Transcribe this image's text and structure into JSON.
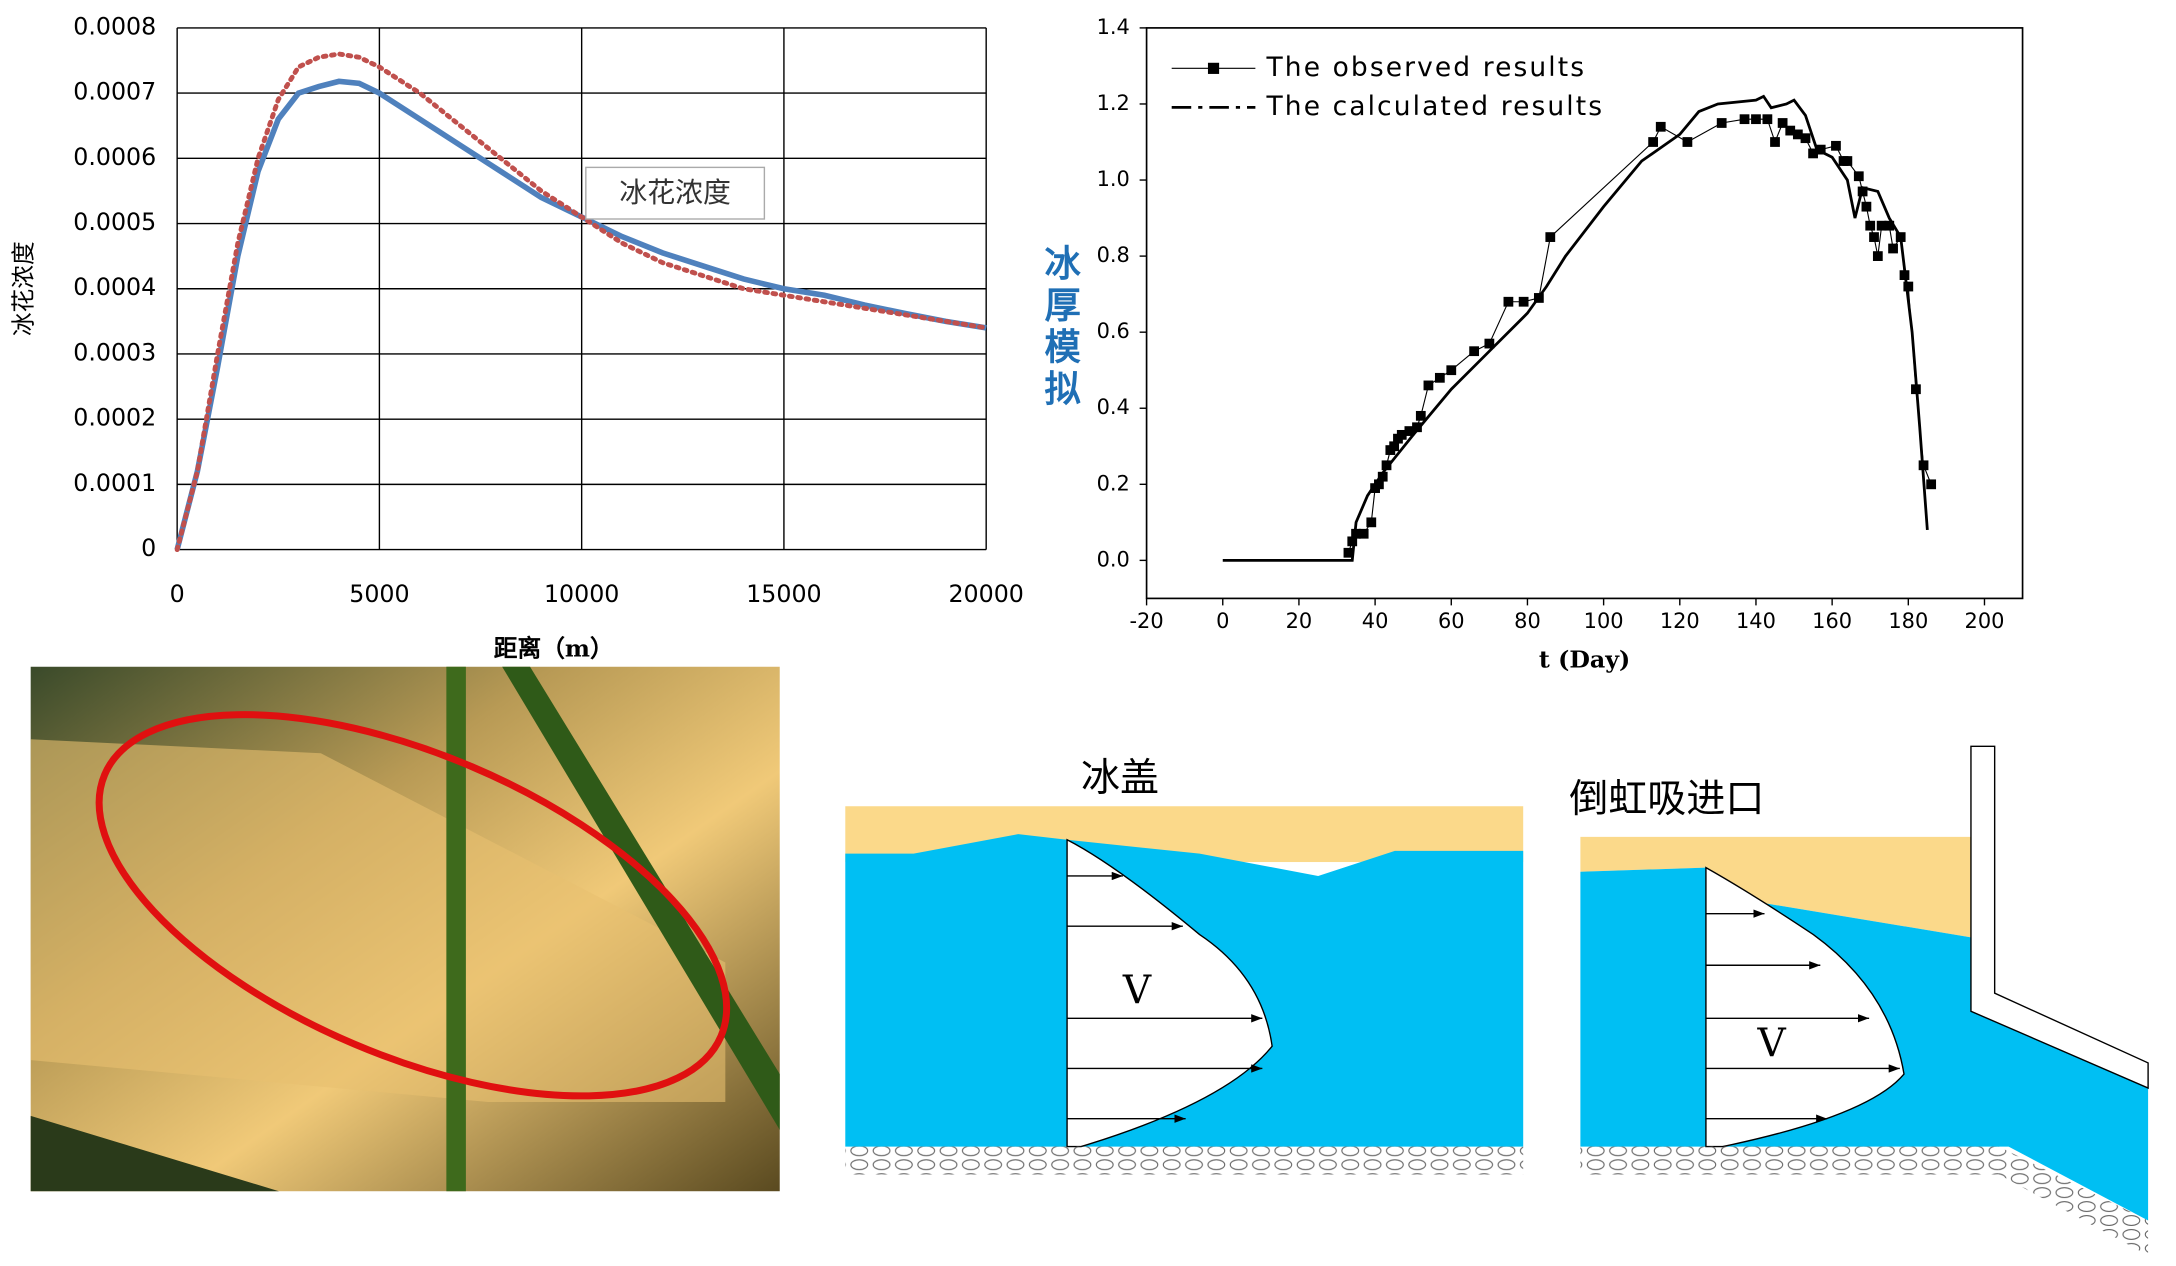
{
  "chart_data": [
    {
      "type": "line",
      "xlabel": "距离（m）",
      "ylabel": "冰花浓度",
      "annotation": "冰花浓度",
      "xlim": [
        0,
        20000
      ],
      "ylim": [
        0,
        0.0008
      ],
      "xticks": [
        0,
        5000,
        10000,
        15000,
        20000
      ],
      "yticks": [
        0,
        0.0001,
        0.0002,
        0.0003,
        0.0004,
        0.0005,
        0.0006,
        0.0007,
        0.0008
      ],
      "grid": true,
      "x": [
        0,
        500,
        1000,
        1500,
        2000,
        2500,
        3000,
        3500,
        4000,
        4500,
        5000,
        6000,
        7000,
        8000,
        9000,
        10000,
        11000,
        12000,
        13000,
        14000,
        15000,
        16000,
        17000,
        18000,
        19000,
        20000
      ],
      "series": [
        {
          "color": "#4f81bd",
          "style": "solid",
          "values": [
            0,
            0.00012,
            0.00028,
            0.00045,
            0.00058,
            0.00066,
            0.0007,
            0.00071,
            0.000718,
            0.000715,
            0.0007,
            0.00066,
            0.00062,
            0.00058,
            0.00054,
            0.00051,
            0.00048,
            0.000455,
            0.000435,
            0.000415,
            0.0004,
            0.00039,
            0.000375,
            0.000362,
            0.00035,
            0.00034
          ]
        },
        {
          "color": "#c0504d",
          "style": "dotted",
          "values": [
            0,
            0.00012,
            0.0003,
            0.00047,
            0.0006,
            0.00069,
            0.00074,
            0.000755,
            0.00076,
            0.000755,
            0.00074,
            0.0007,
            0.00065,
            0.0006,
            0.00055,
            0.00051,
            0.00047,
            0.00044,
            0.00042,
            0.0004,
            0.00039,
            0.00038,
            0.00037,
            0.00036,
            0.00035,
            0.00034
          ]
        }
      ]
    },
    {
      "type": "line",
      "xlabel": "t (Day)",
      "annotation": "冰厚模拟",
      "xlim": [
        -20,
        210
      ],
      "ylim": [
        -0.1,
        1.4
      ],
      "xticks": [
        -20,
        0,
        20,
        40,
        60,
        80,
        100,
        120,
        140,
        160,
        180,
        200
      ],
      "yticks": [
        {
          "value": 0,
          "label": "0.0"
        },
        0.2,
        0.4,
        0.6,
        0.8,
        {
          "value": 1,
          "label": "1.0"
        },
        1.2,
        1.4
      ],
      "grid": false,
      "legend": "upper left",
      "series": [
        {
          "name": "The observed results",
          "color": "#000000",
          "style": "thin",
          "marker": "square",
          "x": [
            33,
            34,
            35,
            37,
            39,
            40,
            41,
            42,
            43,
            44,
            45,
            46,
            47,
            49,
            51,
            52,
            54,
            57,
            60,
            66,
            70,
            75,
            79,
            83,
            86,
            113,
            115,
            122,
            131,
            137,
            140,
            143,
            145,
            147,
            149,
            151,
            153,
            155,
            157,
            161,
            163,
            164,
            167,
            168,
            169,
            170,
            171,
            172,
            173,
            175,
            176,
            178,
            179,
            180,
            182,
            184,
            186
          ],
          "values": [
            0.02,
            0.05,
            0.07,
            0.07,
            0.1,
            0.19,
            0.2,
            0.22,
            0.25,
            0.29,
            0.3,
            0.32,
            0.33,
            0.34,
            0.35,
            0.38,
            0.46,
            0.48,
            0.5,
            0.55,
            0.57,
            0.68,
            0.68,
            0.69,
            0.85,
            1.1,
            1.14,
            1.1,
            1.15,
            1.16,
            1.16,
            1.16,
            1.1,
            1.15,
            1.13,
            1.12,
            1.11,
            1.07,
            1.08,
            1.09,
            1.05,
            1.05,
            1.01,
            0.97,
            0.93,
            0.88,
            0.85,
            0.8,
            0.88,
            0.88,
            0.82,
            0.85,
            0.75,
            0.72,
            0.45,
            0.25,
            0.2
          ]
        },
        {
          "name": "The calculated results",
          "color": "#000000",
          "style": "solid",
          "x": [
            0,
            34,
            35,
            38,
            42,
            50,
            60,
            70,
            80,
            85,
            90,
            100,
            110,
            120,
            125,
            130,
            140,
            142,
            144,
            148,
            150,
            153,
            156,
            160,
            164,
            166,
            168,
            172,
            175,
            178,
            181,
            183,
            185
          ],
          "values": [
            0,
            0,
            0.1,
            0.17,
            0.23,
            0.33,
            0.45,
            0.55,
            0.65,
            0.72,
            0.8,
            0.93,
            1.05,
            1.12,
            1.18,
            1.2,
            1.21,
            1.22,
            1.19,
            1.2,
            1.21,
            1.17,
            1.08,
            1.06,
            1,
            0.9,
            0.98,
            0.97,
            0.9,
            0.85,
            0.6,
            0.35,
            0.08
          ]
        }
      ]
    }
  ],
  "diagrams": [
    {
      "label": "冰盖",
      "velocity": "V"
    },
    {
      "label": "倒虹吸进口",
      "velocity": "V"
    }
  ]
}
